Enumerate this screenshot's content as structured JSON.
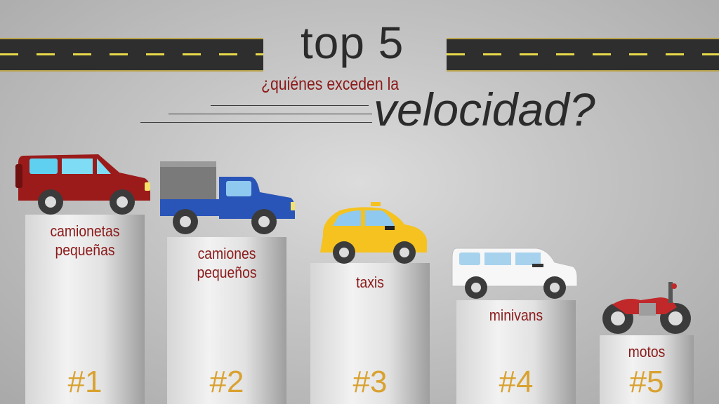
{
  "header": {
    "title": "top 5",
    "subtitle": "¿quiénes exceden la",
    "subtitle_emphasis": "velocidad?"
  },
  "ranking": [
    {
      "rank": "#1",
      "line1": "camionetas",
      "line2": "pequeñas",
      "vehicle": "suv-icon",
      "color": "#9b1b1b"
    },
    {
      "rank": "#2",
      "line1": "camiones",
      "line2": "pequeños",
      "vehicle": "pickup-truck-icon",
      "color": "#2a55b8"
    },
    {
      "rank": "#3",
      "line1": "taxis",
      "line2": "",
      "vehicle": "taxi-icon",
      "color": "#f5c21f"
    },
    {
      "rank": "#4",
      "line1": "minivans",
      "line2": "",
      "vehicle": "minivan-icon",
      "color": "#ffffff"
    },
    {
      "rank": "#5",
      "line1": "motos",
      "line2": "",
      "vehicle": "motorcycle-icon",
      "color": "#c0282a"
    }
  ],
  "colors": {
    "accent_red": "#8c1a1a",
    "rank_gold": "#d9a230",
    "road": "#2e2e2e"
  }
}
